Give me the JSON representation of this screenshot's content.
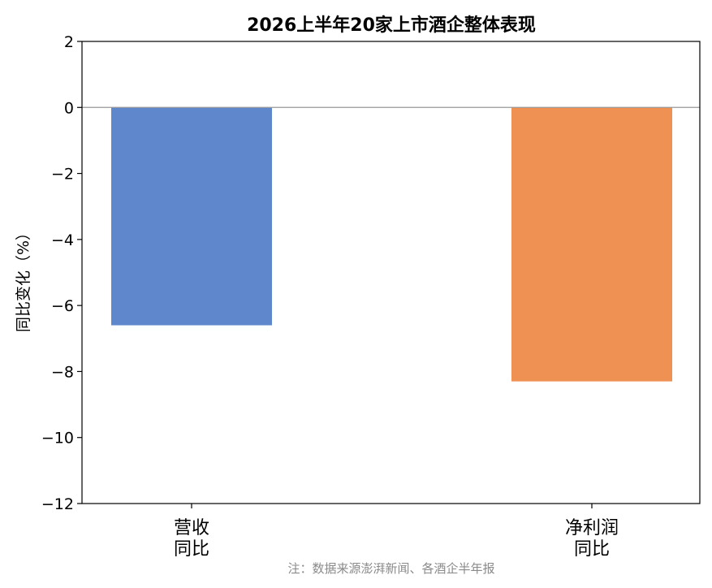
{
  "chart_data": {
    "type": "bar",
    "title": "2026上半年20家上市酒企整体表现",
    "ylabel": "同比变化（%）",
    "categories": [
      [
        "营收",
        "同比"
      ],
      [
        "净利润",
        "同比"
      ]
    ],
    "values": [
      -6.6,
      -8.3
    ],
    "colors": [
      "#5f87cb",
      "#ef9152"
    ],
    "ylim": [
      -12,
      2
    ],
    "yticks": [
      "2",
      "0",
      "−2",
      "−4",
      "−6",
      "−8",
      "−10",
      "−12"
    ],
    "ytick_values": [
      2,
      0,
      -2,
      -4,
      -6,
      -8,
      -10,
      -12
    ],
    "note": "注：数据来源澎湃新闻、各酒企半年报"
  }
}
